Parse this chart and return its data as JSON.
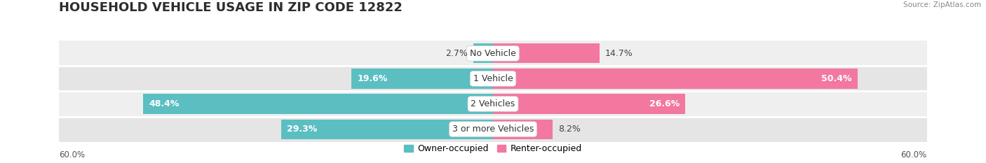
{
  "title": "HOUSEHOLD VEHICLE USAGE IN ZIP CODE 12822",
  "source": "Source: ZipAtlas.com",
  "categories": [
    "No Vehicle",
    "1 Vehicle",
    "2 Vehicles",
    "3 or more Vehicles"
  ],
  "owner_values": [
    2.7,
    19.6,
    48.4,
    29.3
  ],
  "renter_values": [
    14.7,
    50.4,
    26.6,
    8.2
  ],
  "owner_color": "#5bbfc2",
  "renter_color": "#f278a0",
  "axis_max": 60.0,
  "owner_label": "Owner-occupied",
  "renter_label": "Renter-occupied",
  "axis_label_left": "60.0%",
  "axis_label_right": "60.0%",
  "title_fontsize": 13,
  "label_fontsize": 9,
  "category_fontsize": 9,
  "bar_height": 0.78,
  "fig_width": 14.06,
  "fig_height": 2.33,
  "background_color": "#ffffff",
  "row_bg_colors": [
    "#efefef",
    "#e5e5e5",
    "#efefef",
    "#e5e5e5"
  ],
  "separator_color": "#ffffff",
  "text_dark": "#444444",
  "text_light": "#ffffff"
}
